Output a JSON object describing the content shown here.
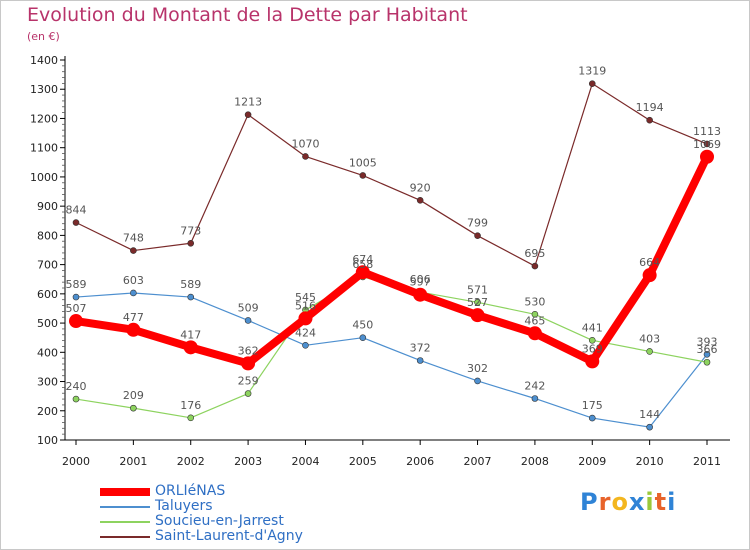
{
  "header": {
    "title": "Evolution du Montant de la Dette par Habitant",
    "subtitle": "(en €)"
  },
  "logo": {
    "text": "Proxiti",
    "colors": [
      "#2f83d6",
      "#e8632a",
      "#f3b61f",
      "#2f83d6",
      "#9bc93b",
      "#e8632a",
      "#2f83d6"
    ]
  },
  "chart_data": {
    "type": "line",
    "title": "Evolution du Montant de la Dette par Habitant",
    "subtitle": "(en €)",
    "xlabel": "",
    "ylabel": "",
    "ylim": [
      100,
      1400
    ],
    "yticks": [
      100,
      200,
      300,
      400,
      500,
      600,
      700,
      800,
      900,
      1000,
      1100,
      1200,
      1300,
      1400
    ],
    "categories": [
      "2000",
      "2001",
      "2002",
      "2003",
      "2004",
      "2005",
      "2006",
      "2007",
      "2008",
      "2009",
      "2010",
      "2011"
    ],
    "grid": false,
    "legend_position": "bottom-left",
    "series": [
      {
        "name": "ORLIéNAS",
        "color": "#ff0000",
        "values": [
          507,
          477,
          417,
          362,
          516,
          674,
          597,
          527,
          465,
          369,
          664,
          1069
        ],
        "labels": [
          "507",
          "477",
          "417",
          "362",
          "516",
          "674",
          "597",
          "527",
          "465",
          "369",
          "664",
          "1069"
        ]
      },
      {
        "name": "Taluyers",
        "color": "#4d8fcf",
        "values": [
          589,
          603,
          589,
          509,
          424,
          450,
          372,
          302,
          242,
          175,
          144,
          393
        ],
        "labels": [
          "589",
          "603",
          "589",
          "509",
          "424",
          "450",
          "372",
          "302",
          "242",
          "175",
          "144",
          "393"
        ]
      },
      {
        "name": "Soucieu-en-Jarrest",
        "color": "#8dd35f",
        "values": [
          240,
          209,
          176,
          259,
          545,
          658,
          606,
          571,
          530,
          441,
          403,
          366
        ],
        "labels": [
          "240",
          "209",
          "176",
          "259",
          "545",
          "658",
          "606",
          "571",
          "530",
          "441",
          "403",
          "366"
        ]
      },
      {
        "name": "Saint-Laurent-d'Agny",
        "color": "#7a2a2a",
        "values": [
          844,
          748,
          773,
          1213,
          1070,
          1005,
          920,
          799,
          695,
          1319,
          1194,
          1113
        ],
        "labels": [
          "844",
          "748",
          "773",
          "1213",
          "1070",
          "1005",
          "920",
          "799",
          "695",
          "1319",
          "1194",
          "1113"
        ]
      }
    ]
  }
}
